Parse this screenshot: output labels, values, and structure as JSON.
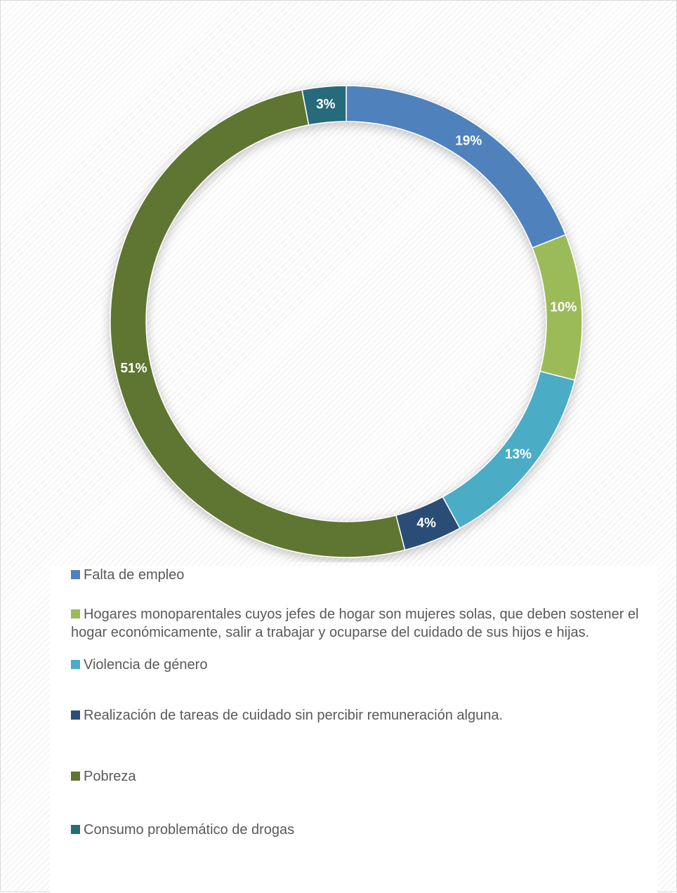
{
  "chart_data": {
    "type": "donut",
    "categories": [
      "Falta de empleo",
      "Hogares monoparentales cuyos jefes de hogar son mujeres solas, que deben sostener el hogar económicamente, salir a trabajar y ocuparse del cuidado de sus hijos e hijas.",
      "Violencia de género",
      "Realización de tareas de cuidado sin percibir remuneración alguna.",
      "Pobreza",
      "Consumo problemático de drogas"
    ],
    "values": [
      19,
      10,
      13,
      4,
      51,
      3
    ],
    "value_labels": [
      "19%",
      "10%",
      "13%",
      "4%",
      "51%",
      "3%"
    ],
    "colors": [
      "#4f81bd",
      "#9bbb59",
      "#4bacc6",
      "#2c4d75",
      "#5f7530",
      "#276a7c"
    ],
    "legend": "bottom"
  }
}
